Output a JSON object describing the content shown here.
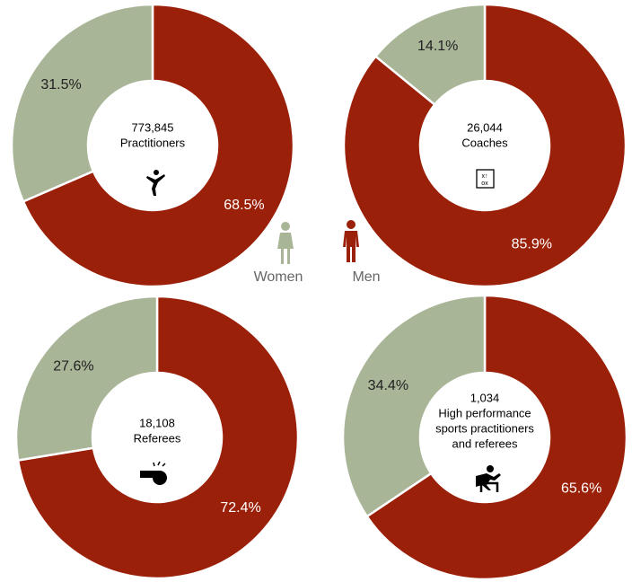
{
  "legend": [
    {
      "name": "Women",
      "color": "#a9b597"
    },
    {
      "name": "Men",
      "color": "#9b2009"
    }
  ],
  "chart_data": [
    {
      "type": "donut",
      "values": [
        68.5,
        31.5
      ],
      "value_labels": [
        "68.5%",
        "31.5%"
      ],
      "colors": [
        "#9b2009",
        "#a9b597"
      ],
      "center_lines": [
        "773,845",
        "Practitioners"
      ]
    },
    {
      "type": "donut",
      "values": [
        85.9,
        14.1
      ],
      "value_labels": [
        "85.9%",
        "14.1%"
      ],
      "colors": [
        "#9b2009",
        "#a9b597"
      ],
      "center_lines": [
        "26,044",
        "Coaches"
      ]
    },
    {
      "type": "donut",
      "values": [
        72.4,
        27.6
      ],
      "value_labels": [
        "72.4%",
        "27.6%"
      ],
      "colors": [
        "#9b2009",
        "#a9b597"
      ],
      "center_lines": [
        "18,108",
        "Referees"
      ]
    },
    {
      "type": "donut",
      "values": [
        65.6,
        34.4
      ],
      "value_labels": [
        "65.6%",
        "34.4%"
      ],
      "colors": [
        "#9b2009",
        "#a9b597"
      ],
      "center_lines": [
        "1,034",
        "High performance",
        "sports practitioners",
        "and referees"
      ]
    }
  ]
}
